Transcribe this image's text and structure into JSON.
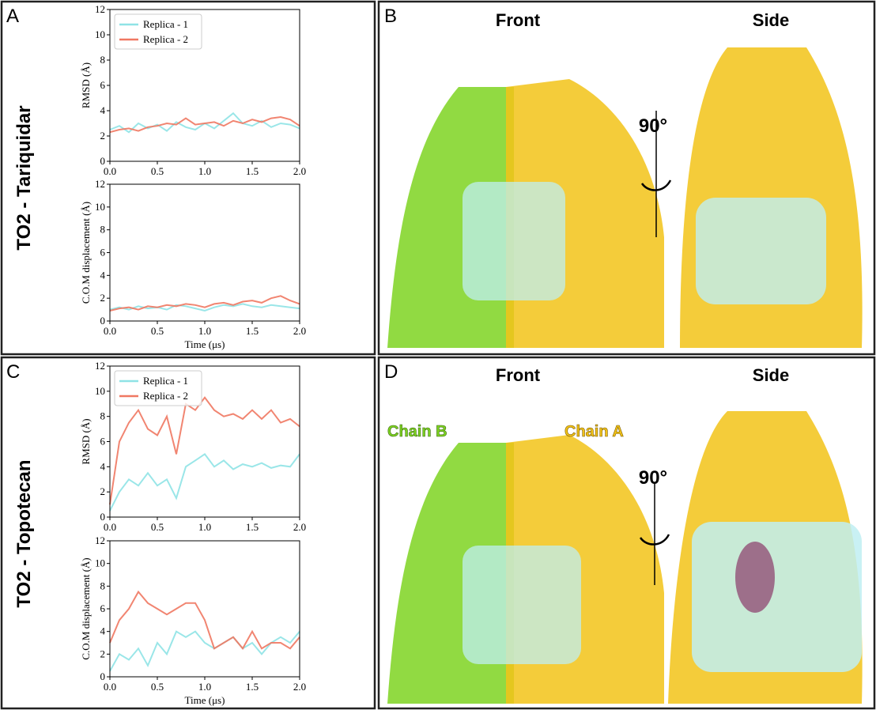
{
  "panels": {
    "labels": [
      "A",
      "B",
      "C",
      "D"
    ],
    "row_titles": [
      "TO2 - Tariquidar",
      "TO2 - Topotecan"
    ],
    "views": [
      "Front",
      "Side"
    ],
    "rotation": "90°",
    "chains": [
      "Chain B",
      "Chain A"
    ]
  },
  "chart_data": [
    {
      "type": "line",
      "ylabel": "RMSD (Å)",
      "xlim": [
        0,
        2
      ],
      "ylim": [
        0,
        12
      ],
      "xticks": [
        {
          "value": 0,
          "label": "0.0"
        },
        {
          "value": 0.5,
          "label": "0.5"
        },
        {
          "value": 1,
          "label": "1.0"
        },
        {
          "value": 1.5,
          "label": "1.5"
        },
        {
          "value": 2,
          "label": "2.0"
        }
      ],
      "yticks": [
        0,
        2,
        4,
        6,
        8,
        10,
        12
      ],
      "legend": "upper left",
      "x": [
        0,
        0.1,
        0.2,
        0.3,
        0.4,
        0.5,
        0.6,
        0.7,
        0.8,
        0.9,
        1.0,
        1.1,
        1.2,
        1.3,
        1.4,
        1.5,
        1.6,
        1.7,
        1.8,
        1.9,
        2.0
      ],
      "series": [
        {
          "name": "Replica - 1",
          "color": "#8fe3e6",
          "values": [
            2.5,
            2.8,
            2.3,
            3.0,
            2.6,
            2.9,
            2.4,
            3.1,
            2.7,
            2.5,
            3.0,
            2.6,
            3.2,
            3.8,
            3.0,
            2.8,
            3.2,
            2.7,
            3.0,
            2.9,
            2.6
          ]
        },
        {
          "name": "Replica - 2",
          "color": "#f07862",
          "values": [
            2.3,
            2.5,
            2.6,
            2.4,
            2.7,
            2.8,
            3.0,
            2.9,
            3.4,
            2.9,
            3.0,
            3.1,
            2.8,
            3.2,
            3.0,
            3.3,
            3.1,
            3.4,
            3.5,
            3.3,
            2.8
          ]
        }
      ]
    },
    {
      "type": "line",
      "ylabel": "C.O.M displacement (Å)",
      "xlabel": "Time (μs)",
      "xlim": [
        0,
        2
      ],
      "ylim": [
        0,
        12
      ],
      "xticks": [
        {
          "value": 0,
          "label": "0.0"
        },
        {
          "value": 0.5,
          "label": "0.5"
        },
        {
          "value": 1,
          "label": "1.0"
        },
        {
          "value": 1.5,
          "label": "1.5"
        },
        {
          "value": 2,
          "label": "2.0"
        }
      ],
      "yticks": [
        0,
        2,
        4,
        6,
        8,
        10,
        12
      ],
      "x": [
        0,
        0.1,
        0.2,
        0.3,
        0.4,
        0.5,
        0.6,
        0.7,
        0.8,
        0.9,
        1.0,
        1.1,
        1.2,
        1.3,
        1.4,
        1.5,
        1.6,
        1.7,
        1.8,
        1.9,
        2.0
      ],
      "series": [
        {
          "name": "Replica - 1",
          "color": "#8fe3e6",
          "values": [
            1.0,
            1.2,
            1.0,
            1.3,
            1.1,
            1.2,
            1.0,
            1.4,
            1.3,
            1.1,
            0.9,
            1.2,
            1.4,
            1.3,
            1.5,
            1.3,
            1.2,
            1.4,
            1.3,
            1.2,
            1.1
          ]
        },
        {
          "name": "Replica - 2",
          "color": "#f07862",
          "values": [
            0.9,
            1.1,
            1.2,
            1.0,
            1.3,
            1.2,
            1.4,
            1.3,
            1.5,
            1.4,
            1.2,
            1.5,
            1.6,
            1.4,
            1.7,
            1.8,
            1.6,
            2.0,
            2.2,
            1.8,
            1.5
          ]
        }
      ]
    },
    {
      "type": "line",
      "ylabel": "RMSD (Å)",
      "xlim": [
        0,
        2
      ],
      "ylim": [
        0,
        12
      ],
      "xticks": [
        {
          "value": 0,
          "label": "0.0"
        },
        {
          "value": 0.5,
          "label": "0.5"
        },
        {
          "value": 1,
          "label": "1.0"
        },
        {
          "value": 1.5,
          "label": "1.5"
        },
        {
          "value": 2,
          "label": "2.0"
        }
      ],
      "yticks": [
        0,
        2,
        4,
        6,
        8,
        10,
        12
      ],
      "legend": "upper left",
      "x": [
        0,
        0.1,
        0.2,
        0.3,
        0.4,
        0.5,
        0.6,
        0.7,
        0.8,
        0.9,
        1.0,
        1.1,
        1.2,
        1.3,
        1.4,
        1.5,
        1.6,
        1.7,
        1.8,
        1.9,
        2.0
      ],
      "series": [
        {
          "name": "Replica - 1",
          "color": "#8fe3e6",
          "values": [
            0.5,
            2.0,
            3.0,
            2.5,
            3.5,
            2.5,
            3.0,
            1.5,
            4.0,
            4.5,
            5.0,
            4.0,
            4.5,
            3.8,
            4.2,
            4.0,
            4.3,
            3.9,
            4.1,
            4.0,
            5.0
          ]
        },
        {
          "name": "Replica - 2",
          "color": "#f07862",
          "values": [
            1.0,
            6.0,
            7.5,
            8.5,
            7.0,
            6.5,
            8.0,
            5.0,
            9.0,
            8.5,
            9.5,
            8.5,
            8.0,
            8.2,
            7.8,
            8.5,
            7.8,
            8.5,
            7.5,
            7.8,
            7.2
          ]
        }
      ]
    },
    {
      "type": "line",
      "ylabel": "C.O.M displacement (Å)",
      "xlabel": "Time (μs)",
      "xlim": [
        0,
        2
      ],
      "ylim": [
        0,
        12
      ],
      "xticks": [
        {
          "value": 0,
          "label": "0.0"
        },
        {
          "value": 0.5,
          "label": "0.5"
        },
        {
          "value": 1,
          "label": "1.0"
        },
        {
          "value": 1.5,
          "label": "1.5"
        },
        {
          "value": 2,
          "label": "2.0"
        }
      ],
      "yticks": [
        0,
        2,
        4,
        6,
        8,
        10,
        12
      ],
      "x": [
        0,
        0.1,
        0.2,
        0.3,
        0.4,
        0.5,
        0.6,
        0.7,
        0.8,
        0.9,
        1.0,
        1.1,
        1.2,
        1.3,
        1.4,
        1.5,
        1.6,
        1.7,
        1.8,
        1.9,
        2.0
      ],
      "series": [
        {
          "name": "Replica - 1",
          "color": "#8fe3e6",
          "values": [
            0.5,
            2.0,
            1.5,
            2.5,
            1.0,
            3.0,
            2.0,
            4.0,
            3.5,
            4.0,
            3.0,
            2.5,
            3.0,
            3.5,
            2.5,
            3.0,
            2.0,
            3.0,
            3.5,
            3.0,
            4.0
          ]
        },
        {
          "name": "Replica - 2",
          "color": "#f07862",
          "values": [
            3.0,
            5.0,
            6.0,
            7.5,
            6.5,
            6.0,
            5.5,
            6.0,
            6.5,
            6.5,
            5.0,
            2.5,
            3.0,
            3.5,
            2.5,
            4.0,
            2.5,
            3.0,
            3.0,
            2.5,
            3.5
          ]
        }
      ]
    }
  ]
}
